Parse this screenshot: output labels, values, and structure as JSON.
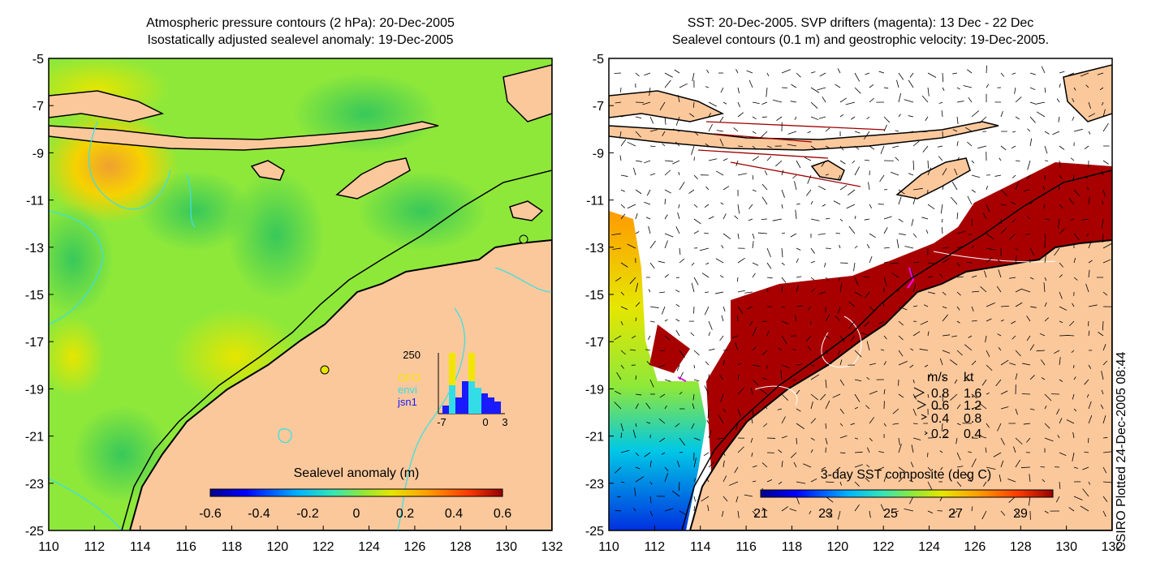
{
  "left_panel": {
    "title_line1": "Atmospheric pressure contours (2 hPa): 20-Dec-2005",
    "title_line2": "Isostatically adjusted sealevel anomaly: 19-Dec-2005",
    "colorbar_label": "Sealevel anomaly (m)",
    "colorbar_ticks": [
      "-0.6",
      "-0.4",
      "-0.2",
      "0",
      "0.2",
      "0.4",
      "0.6"
    ],
    "histogram": {
      "count_label": "250",
      "legend": [
        {
          "label": "GFO",
          "color": "#f2e600"
        },
        {
          "label": "envi",
          "color": "#33dde6"
        },
        {
          "label": "jsn1",
          "color": "#1a1aff"
        }
      ],
      "x_ticks": [
        "-7",
        "0",
        "3"
      ]
    },
    "colors": {
      "ocean": "#8ee83a",
      "land": "#fbc89c",
      "contour": "#3de0e0"
    }
  },
  "right_panel": {
    "title_line1": "SST: 20-Dec-2005. SVP drifters (magenta): 13 Dec - 22 Dec",
    "title_line2": "Sealevel contours (0.1 m) and geostrophic velocity: 19-Dec-2005.",
    "colorbar_label": "3-day SST composite (deg C)",
    "colorbar_ticks": [
      "21",
      "23",
      "25",
      "27",
      "29"
    ],
    "velocity_legend": {
      "header": [
        "m/s",
        "kt"
      ],
      "rows": [
        [
          "0.8",
          "1.6"
        ],
        [
          "0.6",
          "1.2"
        ],
        [
          "0.4",
          "0.8"
        ],
        [
          "0.2",
          "0.4"
        ]
      ]
    },
    "colors": {
      "warm_sst": "#a80000",
      "land": "#fbc89c",
      "cloud": "#ffffff"
    }
  },
  "axes": {
    "x_ticks": [
      "110",
      "112",
      "114",
      "116",
      "118",
      "120",
      "122",
      "124",
      "126",
      "128",
      "130",
      "132"
    ],
    "y_ticks": [
      "-5",
      "-7",
      "-9",
      "-11",
      "-13",
      "-15",
      "-17",
      "-19",
      "-21",
      "-23",
      "-25"
    ]
  },
  "side_label": "CSIRO Plotted 24-Dec-2005 08:44"
}
